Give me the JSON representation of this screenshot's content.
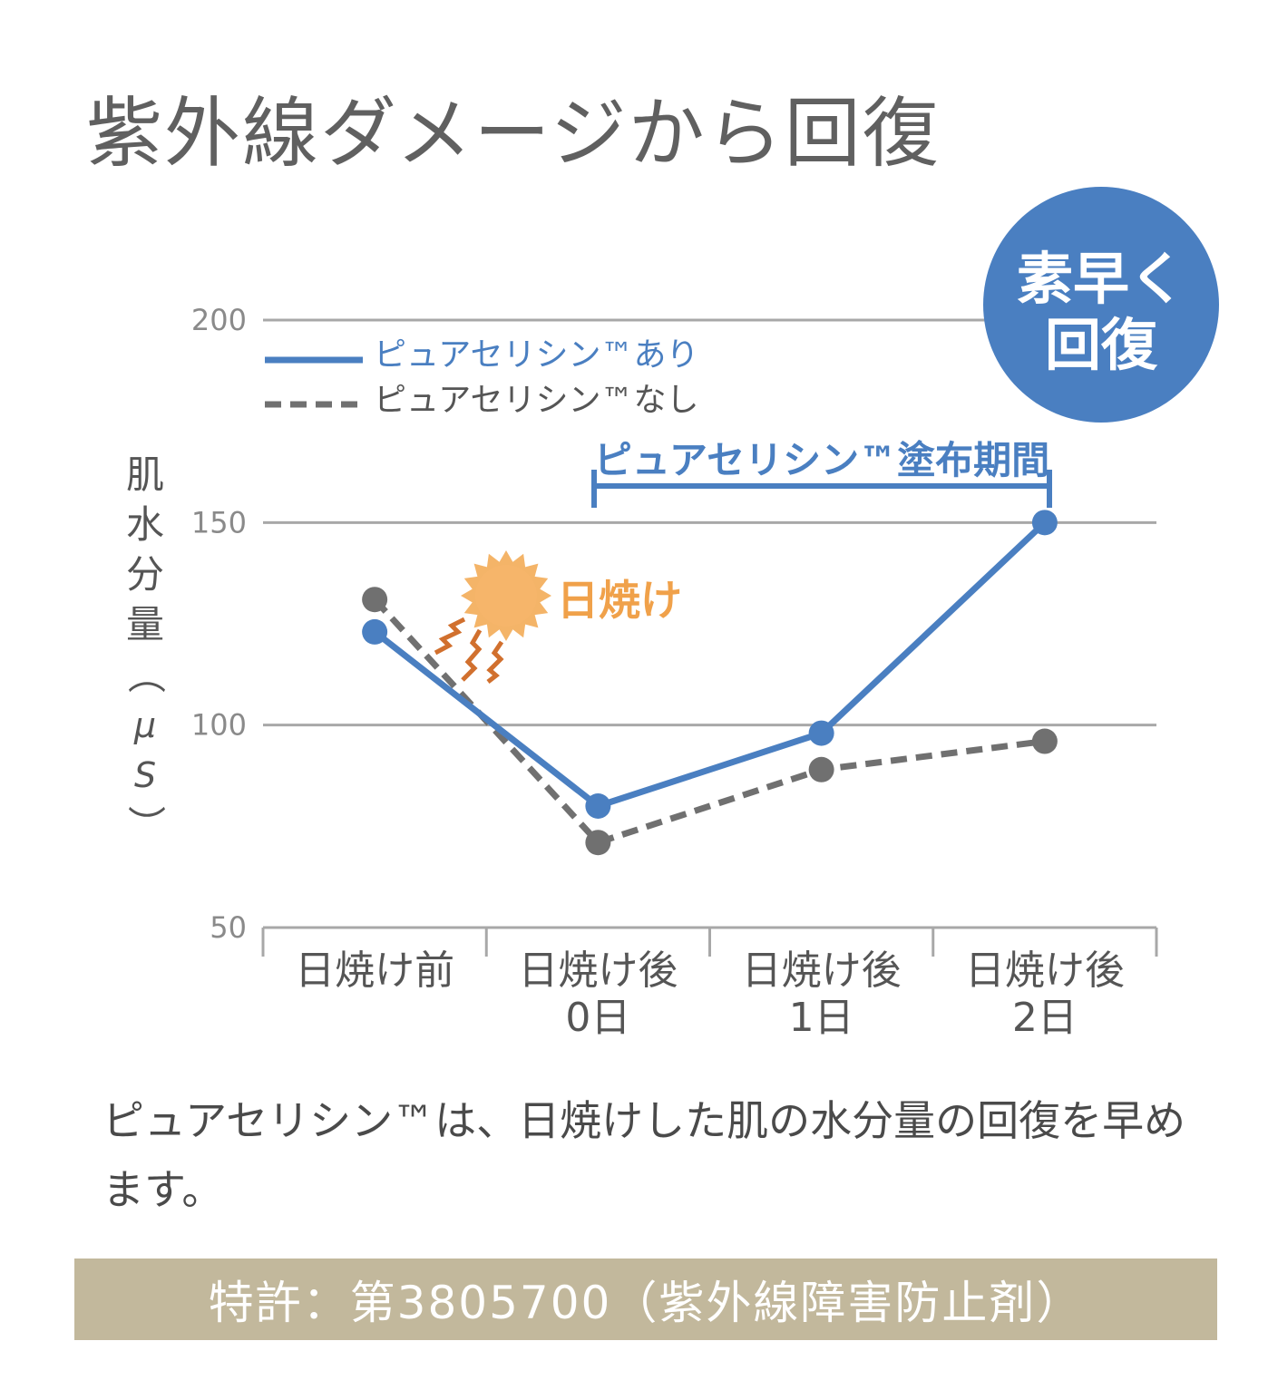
{
  "title": "紫外線ダメージから回復",
  "badge": {
    "line1": "素早く",
    "line2": "回復",
    "color": "#4a7fc1"
  },
  "sunburn_label": "日焼け",
  "application_period_label": "ピュアセリシン™塗布期間",
  "caption": "ピュアセリシン™は、日焼けした肌の水分量の回復を早めます。",
  "patent": "特許：第3805700（紫外線障害防止剤）",
  "colors": {
    "with": "#4a7fc1",
    "without": "#707070",
    "sunburn": "#f0a14a",
    "grid": "#a8a8a8",
    "patent_bg": "#c2b89c"
  },
  "chart_data": {
    "type": "line",
    "categories": [
      "日焼け前",
      "日焼け後\n0日",
      "日焼け後\n1日",
      "日焼け後\n2日"
    ],
    "series": [
      {
        "name": "ピュアセリシン™あり",
        "values": [
          123,
          80,
          98,
          150
        ],
        "style": "solid",
        "color": "#4a7fc1"
      },
      {
        "name": "ピュアセリシン™なし",
        "values": [
          131,
          71,
          89,
          96
        ],
        "style": "dashed",
        "color": "#707070"
      }
    ],
    "ylabel": "肌水分量（μS）",
    "yticks": [
      50,
      100,
      150,
      200
    ],
    "ylim": [
      50,
      200
    ],
    "grid": true,
    "legend": "top-left"
  }
}
